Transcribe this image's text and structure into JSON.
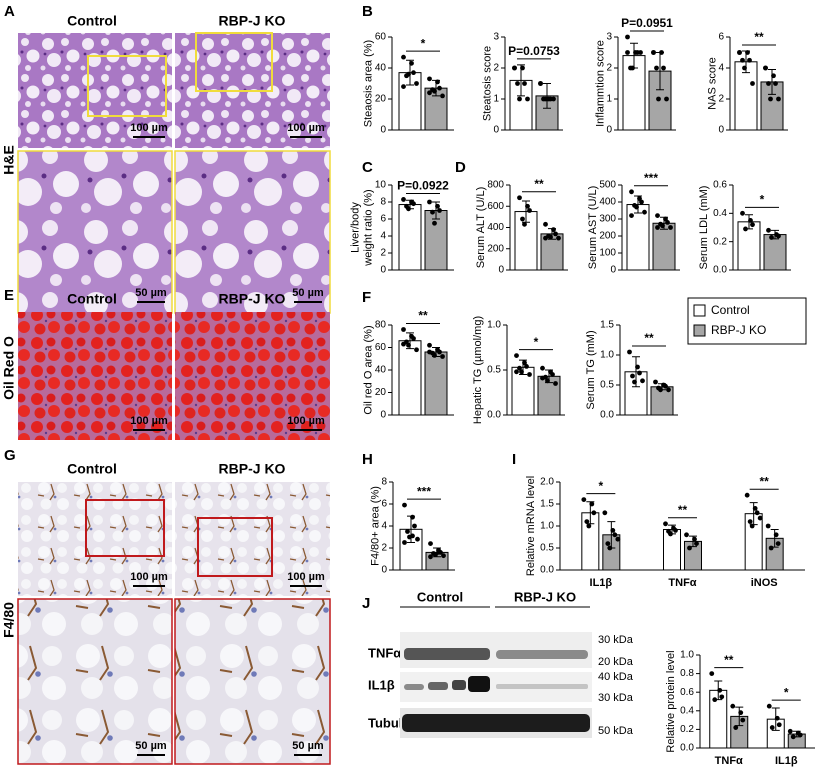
{
  "figure": {
    "letters": [
      "A",
      "B",
      "C",
      "D",
      "E",
      "F",
      "G",
      "H",
      "I",
      "J"
    ],
    "he": {
      "labels": [
        "Control",
        "RBP-J KO"
      ],
      "stain": "H&E",
      "scale_bars": [
        "100 µm",
        "100 µm",
        "50 µm",
        "50 µm"
      ]
    },
    "oil": {
      "labels": [
        "Control",
        "RBP-J KO"
      ],
      "stain": "Oil Red O",
      "scale_bars": [
        "100 µm",
        "100 µm"
      ]
    },
    "f480": {
      "labels": [
        "Control",
        "RBP-J KO"
      ],
      "stain": "F4/80",
      "scale_bars": [
        "100 µm",
        "100 µm",
        "50 µm",
        "50 µm"
      ]
    },
    "blot": {
      "groups": [
        "Control",
        "RBP-J KO"
      ],
      "rows": [
        "TNFα",
        "IL1β",
        "Tubulin"
      ],
      "markers": [
        "30 kDa",
        "20 kDa",
        "40 kDa",
        "30 kDa",
        "50 kDa"
      ]
    }
  },
  "legend": {
    "series": [
      {
        "name": "Control",
        "color": "#ffffff"
      },
      {
        "name": "RBP-J KO",
        "color": "#a6a6a6"
      }
    ]
  },
  "chart_data": [
    {
      "type": "bar",
      "ylabel": "Steaosis area (%)",
      "ylim": [
        0,
        60
      ],
      "yticks": [
        0,
        20,
        40,
        60
      ],
      "values": [
        37,
        27
      ],
      "errors": [
        8,
        5
      ],
      "points": [
        [
          47,
          43,
          37,
          35,
          36,
          30,
          28
        ],
        [
          33,
          31,
          27,
          26,
          25,
          22,
          24
        ]
      ],
      "annotation": "*"
    },
    {
      "type": "bar",
      "ylabel": "Steatosis score",
      "ylim": [
        0,
        3
      ],
      "yticks": [
        0,
        1,
        2,
        3
      ],
      "values": [
        1.6,
        1.1
      ],
      "errors": [
        0.5,
        0.4
      ],
      "points": [
        [
          2,
          2,
          1.5,
          1.5,
          1,
          1,
          2
        ],
        [
          1.5,
          1,
          1,
          1,
          1,
          1,
          1.5
        ]
      ],
      "annotation": "P=0.0753"
    },
    {
      "type": "bar",
      "ylabel": "Inflammtion score",
      "ylim": [
        0,
        3
      ],
      "yticks": [
        0,
        1,
        2,
        3
      ],
      "values": [
        2.4,
        1.9
      ],
      "errors": [
        0.4,
        0.6
      ],
      "points": [
        [
          3,
          2.5,
          2.5,
          2,
          2,
          2.5,
          2.5
        ],
        [
          2.5,
          2.5,
          2,
          2,
          1,
          1,
          2.5
        ]
      ],
      "annotation": "P=0.0951"
    },
    {
      "type": "bar",
      "ylabel": "NAS score",
      "ylim": [
        0,
        6
      ],
      "yticks": [
        0,
        2,
        4,
        6
      ],
      "values": [
        4.4,
        3.1
      ],
      "errors": [
        0.7,
        0.8
      ],
      "points": [
        [
          5,
          5,
          4.5,
          4.5,
          4,
          3,
          5
        ],
        [
          4,
          3.5,
          3,
          3,
          2,
          2,
          4
        ]
      ],
      "annotation": "**"
    },
    {
      "type": "bar",
      "ylabel": [
        "Liver/body",
        "weight ratio (%)"
      ],
      "ylim": [
        0,
        10
      ],
      "yticks": [
        0,
        2,
        4,
        6,
        8,
        10
      ],
      "values": [
        7.7,
        7.0
      ],
      "errors": [
        0.5,
        1.0
      ],
      "points": [
        [
          8.3,
          8,
          7.8,
          7.5,
          7.2
        ],
        [
          8,
          7.5,
          7,
          6.8,
          5.5
        ]
      ],
      "annotation": "P=0.0922"
    },
    {
      "type": "bar",
      "ylabel": "Serum ALT (U/L)",
      "ylim": [
        0,
        800
      ],
      "yticks": [
        0,
        200,
        400,
        600,
        800
      ],
      "values": [
        550,
        340
      ],
      "errors": [
        100,
        50
      ],
      "points": [
        [
          680,
          600,
          560,
          480,
          430
        ],
        [
          430,
          380,
          340,
          320,
          310,
          300,
          300
        ]
      ],
      "annotation": "**"
    },
    {
      "type": "bar",
      "ylabel": "Serum AST (U/L)",
      "ylim": [
        0,
        500
      ],
      "yticks": [
        0,
        100,
        200,
        300,
        400,
        500
      ],
      "values": [
        385,
        275
      ],
      "errors": [
        50,
        35
      ],
      "points": [
        [
          460,
          420,
          400,
          380,
          370,
          340,
          320
        ],
        [
          320,
          300,
          280,
          270,
          260,
          250,
          250
        ]
      ],
      "annotation": "***"
    },
    {
      "type": "bar",
      "ylabel": "Serum LDL (mM)",
      "ylim": [
        0,
        0.6
      ],
      "yticks": [
        {
          "value": 0,
          "label": "0.0"
        },
        0.2,
        0.4,
        0.6
      ],
      "values": [
        0.34,
        0.25
      ],
      "errors": [
        0.05,
        0.03
      ],
      "points": [
        [
          0.4,
          0.35,
          0.32,
          0.29
        ],
        [
          0.28,
          0.25,
          0.24,
          0.23
        ]
      ],
      "annotation": "*"
    },
    {
      "type": "bar",
      "ylabel": "Oil red O area (%)",
      "ylim": [
        0,
        80
      ],
      "yticks": [
        0,
        20,
        40,
        60,
        80
      ],
      "values": [
        66,
        56
      ],
      "errors": [
        7,
        4
      ],
      "points": [
        [
          76,
          70,
          68,
          65,
          62,
          58,
          63
        ],
        [
          62,
          58,
          56,
          55,
          53,
          52,
          56
        ]
      ],
      "annotation": "**"
    },
    {
      "type": "bar",
      "ylabel": "Hepatic TG (µmol/mg)",
      "ylim": [
        0,
        1
      ],
      "yticks": [
        {
          "value": 0,
          "label": "0.0"
        },
        0.5,
        {
          "value": 1,
          "label": "1.0"
        }
      ],
      "values": [
        0.53,
        0.43
      ],
      "errors": [
        0.08,
        0.07
      ],
      "points": [
        [
          0.66,
          0.58,
          0.54,
          0.52,
          0.48,
          0.45,
          0.48
        ],
        [
          0.52,
          0.48,
          0.45,
          0.42,
          0.38,
          0.35,
          0.41
        ]
      ],
      "annotation": "*"
    },
    {
      "type": "bar",
      "ylabel": "Serum TG (mM)",
      "ylim": [
        0,
        1.5
      ],
      "yticks": [
        {
          "value": 0,
          "label": "0.0"
        },
        0.5,
        {
          "value": 1,
          "label": "1.0"
        },
        1.5
      ],
      "values": [
        0.72,
        0.47
      ],
      "errors": [
        0.25,
        0.05
      ],
      "points": [
        [
          1.05,
          0.8,
          0.7,
          0.65,
          0.55,
          0.57
        ],
        [
          0.55,
          0.5,
          0.48,
          0.45,
          0.42,
          0.42
        ]
      ],
      "annotation": "**"
    },
    {
      "type": "bar",
      "ylabel": "F4/80+ area (%)",
      "ylim": [
        0,
        8
      ],
      "yticks": [
        0,
        2,
        4,
        6,
        8
      ],
      "values": [
        3.7,
        1.6
      ],
      "errors": [
        1.2,
        0.4
      ],
      "points": [
        [
          5.9,
          4.8,
          4.0,
          3.5,
          3.0,
          2.8,
          2.5,
          3.1
        ],
        [
          2.4,
          1.8,
          1.6,
          1.5,
          1.4,
          1.3,
          1.2,
          1.6
        ]
      ],
      "annotation": "***"
    },
    {
      "type": "grouped_bar",
      "ylabel": "Relative mRNA level",
      "ylim": [
        0,
        2
      ],
      "yticks": [
        {
          "value": 0,
          "label": "0.0"
        },
        0.5,
        {
          "value": 1,
          "label": "1.0"
        },
        1.5,
        {
          "value": 2,
          "label": "2.0"
        }
      ],
      "groups": [
        {
          "category": "IL1β",
          "values": [
            1.3,
            0.8
          ],
          "errors": [
            0.25,
            0.3
          ],
          "points": [
            [
              1.6,
              1.5,
              1.3,
              1.1,
              1.0
            ],
            [
              1.3,
              0.9,
              0.8,
              0.6,
              0.5,
              0.7
            ]
          ],
          "annotation": "*"
        },
        {
          "category": "TNFα",
          "values": [
            0.92,
            0.65
          ],
          "errors": [
            0.1,
            0.12
          ],
          "points": [
            [
              1.05,
              0.95,
              0.9,
              0.88,
              0.82
            ],
            [
              0.8,
              0.7,
              0.6,
              0.5
            ]
          ],
          "annotation": "**"
        },
        {
          "category": "iNOS",
          "values": [
            1.28,
            0.72
          ],
          "errors": [
            0.25,
            0.2
          ],
          "points": [
            [
              1.7,
              1.4,
              1.3,
              1.1,
              1.0,
              1.18
            ],
            [
              1.0,
              0.8,
              0.6,
              0.5
            ]
          ],
          "annotation": "**"
        }
      ]
    },
    {
      "type": "grouped_bar",
      "ylabel": "Relative protein level",
      "ylim": [
        0,
        1
      ],
      "yticks": [
        {
          "value": 0,
          "label": "0.0"
        },
        0.2,
        0.4,
        0.6,
        0.8,
        {
          "value": 1,
          "label": "1.0"
        }
      ],
      "groups": [
        {
          "category": "TNFα",
          "values": [
            0.62,
            0.34
          ],
          "errors": [
            0.1,
            0.1
          ],
          "points": [
            [
              0.8,
              0.62,
              0.55,
              0.52
            ],
            [
              0.45,
              0.38,
              0.3,
              0.22
            ]
          ],
          "annotation": "**"
        },
        {
          "category": "IL1β",
          "values": [
            0.31,
            0.15
          ],
          "errors": [
            0.12,
            0.03
          ],
          "points": [
            [
              0.45,
              0.32,
              0.25,
              0.22
            ],
            [
              0.18,
              0.16,
              0.14,
              0.12
            ]
          ],
          "annotation": "*"
        }
      ]
    }
  ]
}
